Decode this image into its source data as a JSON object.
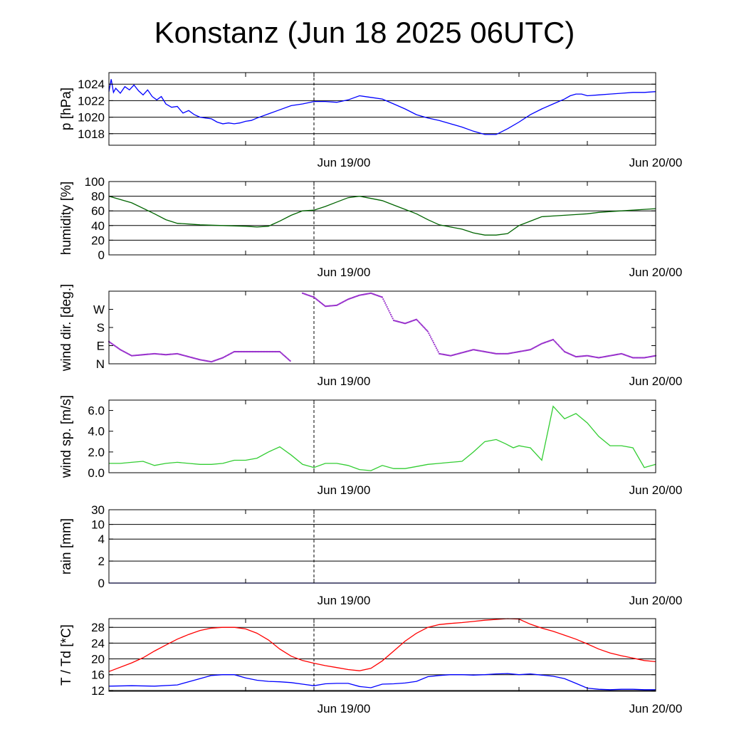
{
  "title": "Konstanz (Jun 18 2025 06UTC)",
  "x_tick_labels": [
    "Jun 19/00",
    "Jun 20/00"
  ],
  "chart_data": [
    {
      "id": "pressure",
      "type": "line",
      "ylabel": "p [hPa]",
      "ylim": [
        1016.6,
        1025.4
      ],
      "yticks": [
        1018,
        1020,
        1022,
        1024
      ],
      "ytick_labels": [
        "1018",
        "1020",
        "1022",
        "1024"
      ],
      "grid": true,
      "xlim_hours": [
        6,
        54
      ],
      "series": [
        {
          "color": "#0000ff",
          "x": [
            6,
            6.2,
            6.4,
            6.6,
            7,
            7.4,
            7.8,
            8.2,
            8.6,
            9,
            9.4,
            9.8,
            10.2,
            10.6,
            11,
            11.5,
            12,
            12.5,
            13,
            13.5,
            14,
            14.5,
            15,
            15.5,
            16,
            16.5,
            17,
            17.5,
            18,
            18.5,
            19,
            20,
            21,
            22,
            23,
            24,
            25,
            26,
            27,
            28,
            29,
            30,
            31,
            32,
            33,
            34,
            35,
            36,
            37,
            38,
            39,
            40,
            41,
            42,
            43,
            44,
            45,
            46,
            46.5,
            47,
            47.5,
            48,
            49,
            50,
            51,
            52,
            53,
            54
          ],
          "y": [
            1023.1,
            1024.6,
            1023.0,
            1023.5,
            1022.9,
            1023.7,
            1023.3,
            1023.9,
            1023.2,
            1022.7,
            1023.3,
            1022.5,
            1022.1,
            1022.5,
            1021.6,
            1021.2,
            1021.3,
            1020.5,
            1020.8,
            1020.3,
            1020.0,
            1019.9,
            1019.8,
            1019.4,
            1019.2,
            1019.3,
            1019.2,
            1019.3,
            1019.5,
            1019.6,
            1019.9,
            1020.4,
            1020.9,
            1021.4,
            1021.6,
            1021.9,
            1021.9,
            1021.8,
            1022.1,
            1022.6,
            1022.4,
            1022.2,
            1021.6,
            1021.0,
            1020.3,
            1019.9,
            1019.6,
            1019.2,
            1018.8,
            1018.3,
            1017.9,
            1017.9,
            1018.6,
            1019.4,
            1020.3,
            1021.0,
            1021.6,
            1022.2,
            1022.6,
            1022.8,
            1022.8,
            1022.6,
            1022.7,
            1022.8,
            1022.9,
            1023.0,
            1023.0,
            1023.1
          ]
        }
      ]
    },
    {
      "id": "humidity",
      "type": "line",
      "ylabel": "humidity [%]",
      "ylim": [
        0,
        100
      ],
      "yticks": [
        0,
        20,
        40,
        60,
        80,
        100
      ],
      "ytick_labels": [
        "0",
        "20",
        "40",
        "60",
        "80",
        "100"
      ],
      "grid": true,
      "xlim_hours": [
        6,
        54
      ],
      "series": [
        {
          "color": "#006400",
          "x": [
            6,
            8,
            10,
            11,
            12,
            13,
            14,
            16,
            18,
            19,
            20,
            21,
            22,
            23,
            24,
            25,
            26,
            27,
            28,
            29,
            30,
            31,
            32,
            33,
            34,
            35,
            36,
            37,
            38,
            39,
            40,
            41,
            42,
            43,
            44,
            45,
            46,
            47,
            48,
            49,
            50,
            51,
            52,
            53,
            54
          ],
          "y": [
            80,
            71,
            56,
            48,
            43,
            42,
            41,
            40,
            39,
            38,
            39,
            46,
            54,
            60,
            61,
            66,
            72,
            78,
            80,
            77,
            74,
            68,
            62,
            56,
            48,
            41,
            38,
            35,
            30,
            27,
            27,
            29,
            40,
            46,
            52,
            53,
            54,
            55,
            56,
            58,
            59,
            60,
            61,
            62,
            63
          ]
        }
      ]
    },
    {
      "id": "wind_direction",
      "type": "scatter",
      "ylabel": "wind dir. [deg.]",
      "ylim": [
        0,
        360
      ],
      "yticks": [
        0,
        90,
        180,
        270
      ],
      "ytick_labels": [
        "N",
        "E",
        "S",
        "W"
      ],
      "grid": false,
      "xlim_hours": [
        6,
        54
      ],
      "series": [
        {
          "color": "#9932cc",
          "x": [
            6,
            7,
            8,
            9,
            10,
            11,
            12,
            13,
            14,
            15,
            16,
            17,
            18,
            19,
            20,
            21,
            22,
            23,
            24,
            25,
            26,
            27,
            28,
            29,
            30,
            31,
            32,
            33,
            34,
            35,
            36,
            37,
            38,
            39,
            40,
            41,
            42,
            43,
            44,
            45,
            46,
            47,
            48,
            49,
            50,
            51,
            52,
            53,
            54
          ],
          "y": [
            110,
            70,
            40,
            45,
            50,
            45,
            50,
            35,
            20,
            10,
            30,
            60,
            60,
            60,
            60,
            60,
            10,
            350,
            330,
            285,
            290,
            320,
            340,
            350,
            330,
            215,
            200,
            220,
            160,
            50,
            40,
            55,
            70,
            60,
            50,
            50,
            60,
            70,
            100,
            120,
            60,
            35,
            40,
            30,
            40,
            50,
            30,
            30,
            40
          ]
        }
      ]
    },
    {
      "id": "wind_speed",
      "type": "line",
      "ylabel": "wind sp. [m/s]",
      "ylim": [
        0,
        7.0
      ],
      "yticks": [
        0,
        2,
        4,
        6
      ],
      "ytick_labels": [
        "0.0",
        "2.0",
        "4.0",
        "6.0"
      ],
      "grid": false,
      "xlim_hours": [
        6,
        54
      ],
      "series": [
        {
          "color": "#32cd32",
          "x": [
            6,
            7,
            8,
            9,
            10,
            11,
            12,
            13,
            14,
            15,
            16,
            17,
            18,
            19,
            20,
            21,
            22,
            23,
            24,
            25,
            26,
            27,
            28,
            29,
            30,
            31,
            32,
            33,
            34,
            35,
            36,
            37,
            38,
            39,
            40,
            40.8,
            41.5,
            42,
            42.5,
            43,
            44,
            45,
            46,
            47,
            48,
            49,
            50,
            51,
            52,
            53,
            54
          ],
          "y": [
            0.9,
            0.9,
            1.0,
            1.1,
            0.7,
            0.9,
            1.0,
            0.9,
            0.8,
            0.8,
            0.9,
            1.2,
            1.2,
            1.4,
            2.0,
            2.5,
            1.7,
            0.8,
            0.5,
            0.9,
            0.9,
            0.7,
            0.3,
            0.2,
            0.7,
            0.4,
            0.4,
            0.6,
            0.8,
            0.9,
            1.0,
            1.1,
            2.0,
            3.0,
            3.2,
            2.8,
            2.4,
            2.6,
            2.5,
            2.4,
            1.2,
            6.4,
            5.2,
            5.7,
            4.8,
            3.5,
            2.6,
            2.6,
            2.4,
            0.5,
            0.8
          ]
        }
      ]
    },
    {
      "id": "rain",
      "type": "line",
      "ylabel": "rain [mm]",
      "ylim": [
        0,
        30
      ],
      "yticks": [
        0,
        2,
        4,
        10,
        30
      ],
      "ytick_labels": [
        "0",
        "2",
        "4",
        "10",
        "30"
      ],
      "grid": true,
      "xlim_hours": [
        6,
        54
      ],
      "series": [
        {
          "color": "#0000ff",
          "x": [
            6,
            54
          ],
          "y": [
            0,
            0
          ]
        }
      ]
    },
    {
      "id": "temperature_dewpoint",
      "type": "line",
      "ylabel": "T / Td [*C]",
      "ylim": [
        11.8,
        30.2
      ],
      "yticks": [
        12,
        16,
        20,
        24,
        28
      ],
      "ytick_labels": [
        "12",
        "16",
        "20",
        "24",
        "28"
      ],
      "grid": true,
      "xlim_hours": [
        6,
        54
      ],
      "series": [
        {
          "color": "#ff0000",
          "x": [
            6,
            8,
            9,
            10,
            11,
            12,
            13,
            14,
            15,
            16,
            17,
            18,
            19,
            20,
            21,
            22,
            23,
            24,
            25,
            26,
            27,
            28,
            29,
            30,
            31,
            32,
            33,
            34,
            35,
            36,
            37,
            38,
            39,
            40,
            41,
            42,
            43,
            44,
            45,
            46,
            47,
            48,
            49,
            50,
            51,
            52,
            53,
            54
          ],
          "y": [
            16.8,
            19.0,
            20.3,
            22.0,
            23.5,
            25.0,
            26.2,
            27.2,
            27.8,
            28.0,
            28.0,
            27.6,
            26.5,
            24.8,
            22.5,
            20.7,
            19.6,
            18.9,
            18.3,
            17.8,
            17.3,
            17.0,
            17.6,
            19.5,
            22.0,
            24.5,
            26.5,
            28.0,
            28.7,
            29.0,
            29.2,
            29.5,
            29.8,
            30.0,
            30.2,
            30.1,
            28.8,
            27.8,
            27.0,
            26.0,
            25.0,
            23.8,
            22.5,
            21.5,
            20.8,
            20.2,
            19.6,
            19.3
          ]
        },
        {
          "color": "#0000ff",
          "x": [
            6,
            8,
            10,
            12,
            14,
            15,
            16,
            17,
            18,
            19,
            20,
            21,
            22,
            23,
            24,
            25,
            26,
            27,
            28,
            29,
            30,
            31,
            32,
            33,
            34,
            35,
            36,
            37,
            38,
            39,
            40,
            41,
            42,
            43,
            44,
            45,
            46,
            47,
            48,
            49,
            50,
            51,
            52,
            53,
            54
          ],
          "y": [
            13.1,
            13.2,
            13.1,
            13.4,
            15.0,
            15.8,
            16.0,
            16.0,
            15.2,
            14.6,
            14.3,
            14.2,
            14.0,
            13.6,
            13.2,
            13.7,
            13.8,
            13.8,
            13.0,
            12.7,
            13.6,
            13.7,
            13.9,
            14.3,
            15.5,
            15.8,
            16.0,
            16.0,
            15.9,
            16.0,
            16.2,
            16.3,
            16.0,
            16.2,
            15.9,
            15.6,
            15.0,
            13.8,
            12.6,
            12.3,
            12.2,
            12.3,
            12.3,
            12.2,
            12.2
          ]
        }
      ]
    }
  ]
}
